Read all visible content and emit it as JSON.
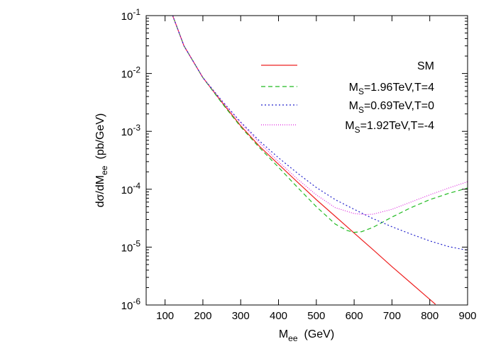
{
  "chart_data": {
    "type": "line",
    "xlabel_main": "M",
    "xlabel_sub": "ee",
    "xlabel_unit": "(GeV)",
    "ylabel_main": "dσ/dM",
    "ylabel_sub": "ee",
    "ylabel_unit": "(pb/GeV)",
    "xlim": [
      50,
      900
    ],
    "ylim": [
      1e-06,
      0.1
    ],
    "yscale": "log",
    "x_ticks": [
      100,
      200,
      300,
      400,
      500,
      600,
      700,
      800,
      900
    ],
    "x_tick_labels": [
      "100",
      "200",
      "300",
      "400",
      "500",
      "600",
      "700",
      "800",
      "900"
    ],
    "y_ticks": [
      {
        "value": 0.1,
        "base": "10",
        "exp": "-1"
      },
      {
        "value": 0.01,
        "base": "10",
        "exp": "-2"
      },
      {
        "value": 0.001,
        "base": "10",
        "exp": "-3"
      },
      {
        "value": 0.0001,
        "base": "10",
        "exp": "-4"
      },
      {
        "value": 1e-05,
        "base": "10",
        "exp": "-5"
      },
      {
        "value": 1e-06,
        "base": "10",
        "exp": "-6"
      }
    ],
    "grid": false,
    "legend_position": "top-right",
    "series": [
      {
        "name": "SM",
        "legend": {
          "main": "SM",
          "sub": "",
          "rest": ""
        },
        "color": "#ee2222",
        "dash": "solid",
        "x": [
          110,
          150,
          200,
          250,
          300,
          350,
          400,
          450,
          500,
          550,
          600,
          650,
          700,
          750,
          800,
          815
        ],
        "y": [
          0.15,
          0.03,
          0.0085,
          0.0032,
          0.00125,
          0.00055,
          0.00027,
          0.000133,
          6.6e-05,
          3.4e-05,
          1.75e-05,
          9e-06,
          4.6e-06,
          2.4e-06,
          1.25e-06,
          1.03e-06
        ]
      },
      {
        "name": "MS=1.96TeV,T=4",
        "legend": {
          "main": "M",
          "sub": "S",
          "rest": "=1.96TeV,T=4"
        },
        "color": "#22bb22",
        "dash": "6,4",
        "x": [
          110,
          150,
          200,
          250,
          300,
          350,
          400,
          450,
          500,
          550,
          580,
          600,
          620,
          650,
          700,
          750,
          800,
          850,
          900
        ],
        "y": [
          0.15,
          0.03,
          0.0085,
          0.0031,
          0.0012,
          0.00052,
          0.00024,
          0.000108,
          5e-05,
          2.5e-05,
          1.95e-05,
          1.8e-05,
          1.85e-05,
          2.2e-05,
          3.3e-05,
          4.8e-05,
          6.6e-05,
          8.5e-05,
          0.000105
        ]
      },
      {
        "name": "MS=0.69TeV,T=0",
        "legend": {
          "main": "M",
          "sub": "S",
          "rest": "=0.69TeV,T=0"
        },
        "color": "#2222cc",
        "dash": "2,3",
        "x": [
          110,
          150,
          200,
          250,
          300,
          350,
          400,
          450,
          500,
          550,
          600,
          650,
          700,
          750,
          800,
          850,
          900
        ],
        "y": [
          0.15,
          0.03,
          0.0085,
          0.0034,
          0.00145,
          0.00068,
          0.00035,
          0.00019,
          0.000107,
          6.6e-05,
          4.5e-05,
          3.1e-05,
          2.25e-05,
          1.68e-05,
          1.28e-05,
          1.02e-05,
          8.8e-06
        ]
      },
      {
        "name": "MS=1.92TeV,T=-4",
        "legend": {
          "main": "M",
          "sub": "S",
          "rest": "=1.92TeV,T=-4"
        },
        "color": "#dd22dd",
        "dash": "1,2",
        "x": [
          110,
          150,
          200,
          250,
          300,
          350,
          400,
          450,
          500,
          550,
          600,
          630,
          650,
          700,
          750,
          800,
          850,
          900
        ],
        "y": [
          0.15,
          0.03,
          0.0085,
          0.0033,
          0.0014,
          0.00063,
          0.0003,
          0.00015,
          8e-05,
          4.8e-05,
          3.8e-05,
          3.65e-05,
          3.7e-05,
          4.5e-05,
          6e-05,
          8e-05,
          0.000105,
          0.000135
        ]
      }
    ]
  }
}
